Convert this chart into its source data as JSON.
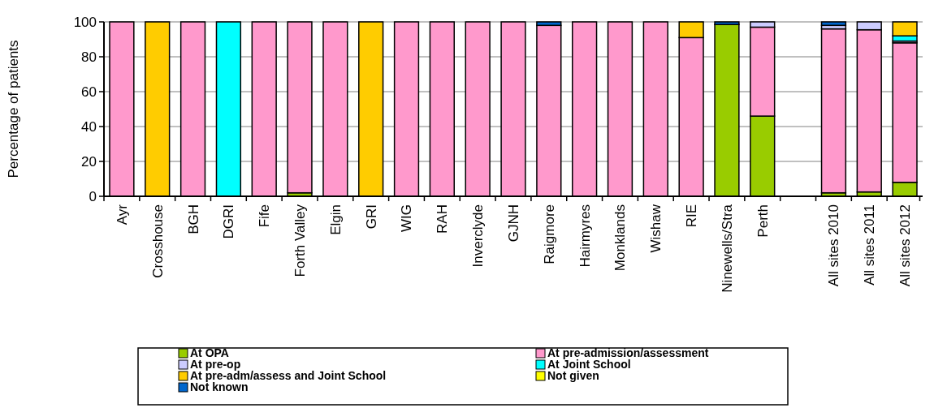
{
  "chart_data": {
    "type": "bar",
    "stacked": true,
    "ylabel": "Percentage of patients",
    "categories": [
      "Ayr",
      "Crosshouse",
      "BGH",
      "DGRI",
      "Fife",
      "Forth Valley",
      "Elgin",
      "GRI",
      "WIG",
      "RAH",
      "Inverclyde",
      "GJNH",
      "Raigmore",
      "Hairmyres",
      "Monklands",
      "Wishaw",
      "RIE",
      "Ninewells/Stra",
      "Perth",
      null,
      "All sites 2010",
      "All sites 2011",
      "All sites 2012"
    ],
    "series": [
      {
        "name": "At OPA",
        "color": "#99cc00",
        "values": [
          0,
          0,
          0,
          0,
          0,
          2,
          0,
          0,
          0,
          0,
          0,
          0,
          0,
          0,
          0,
          0,
          0,
          98.5,
          46,
          null,
          2,
          2.5,
          8
        ]
      },
      {
        "name": "At pre-admission/assessment",
        "color": "#ff99cc",
        "values": [
          100,
          0,
          100,
          0,
          100,
          98,
          100,
          0,
          100,
          100,
          100,
          100,
          98,
          100,
          100,
          100,
          91,
          0,
          51,
          null,
          94,
          93,
          80
        ]
      },
      {
        "name": "At pre-op",
        "color": "#ccccff",
        "values": [
          0,
          0,
          0,
          0,
          0,
          0,
          0,
          0,
          0,
          0,
          0,
          0,
          0,
          0,
          0,
          0,
          0,
          0,
          3,
          null,
          2,
          4.5,
          1
        ]
      },
      {
        "name": "At Joint School",
        "color": "#00ffff",
        "values": [
          0,
          0,
          0,
          100,
          0,
          0,
          0,
          0,
          0,
          0,
          0,
          0,
          0,
          0,
          0,
          0,
          0,
          0,
          0,
          null,
          0,
          0,
          3
        ]
      },
      {
        "name": "At pre-adm/assess and Joint School",
        "color": "#ffcc00",
        "values": [
          0,
          100,
          0,
          0,
          0,
          0,
          0,
          100,
          0,
          0,
          0,
          0,
          0,
          0,
          0,
          0,
          9,
          0,
          0,
          null,
          0,
          0,
          8
        ]
      },
      {
        "name": "Not given",
        "color": "#ffff00",
        "values": [
          0,
          0,
          0,
          0,
          0,
          0,
          0,
          0,
          0,
          0,
          0,
          0,
          0,
          0,
          0,
          0,
          0,
          0,
          0,
          null,
          0,
          0,
          0
        ]
      },
      {
        "name": "Not known",
        "color": "#0066cc",
        "values": [
          0,
          0,
          0,
          0,
          0,
          0,
          0,
          0,
          0,
          0,
          0,
          0,
          2,
          0,
          0,
          0,
          0,
          1.5,
          0,
          null,
          2,
          0,
          0
        ]
      }
    ],
    "ylim": [
      0,
      100
    ],
    "yticks": [
      0,
      20,
      40,
      60,
      80,
      100
    ],
    "grid": "y",
    "legend": "bottom"
  }
}
